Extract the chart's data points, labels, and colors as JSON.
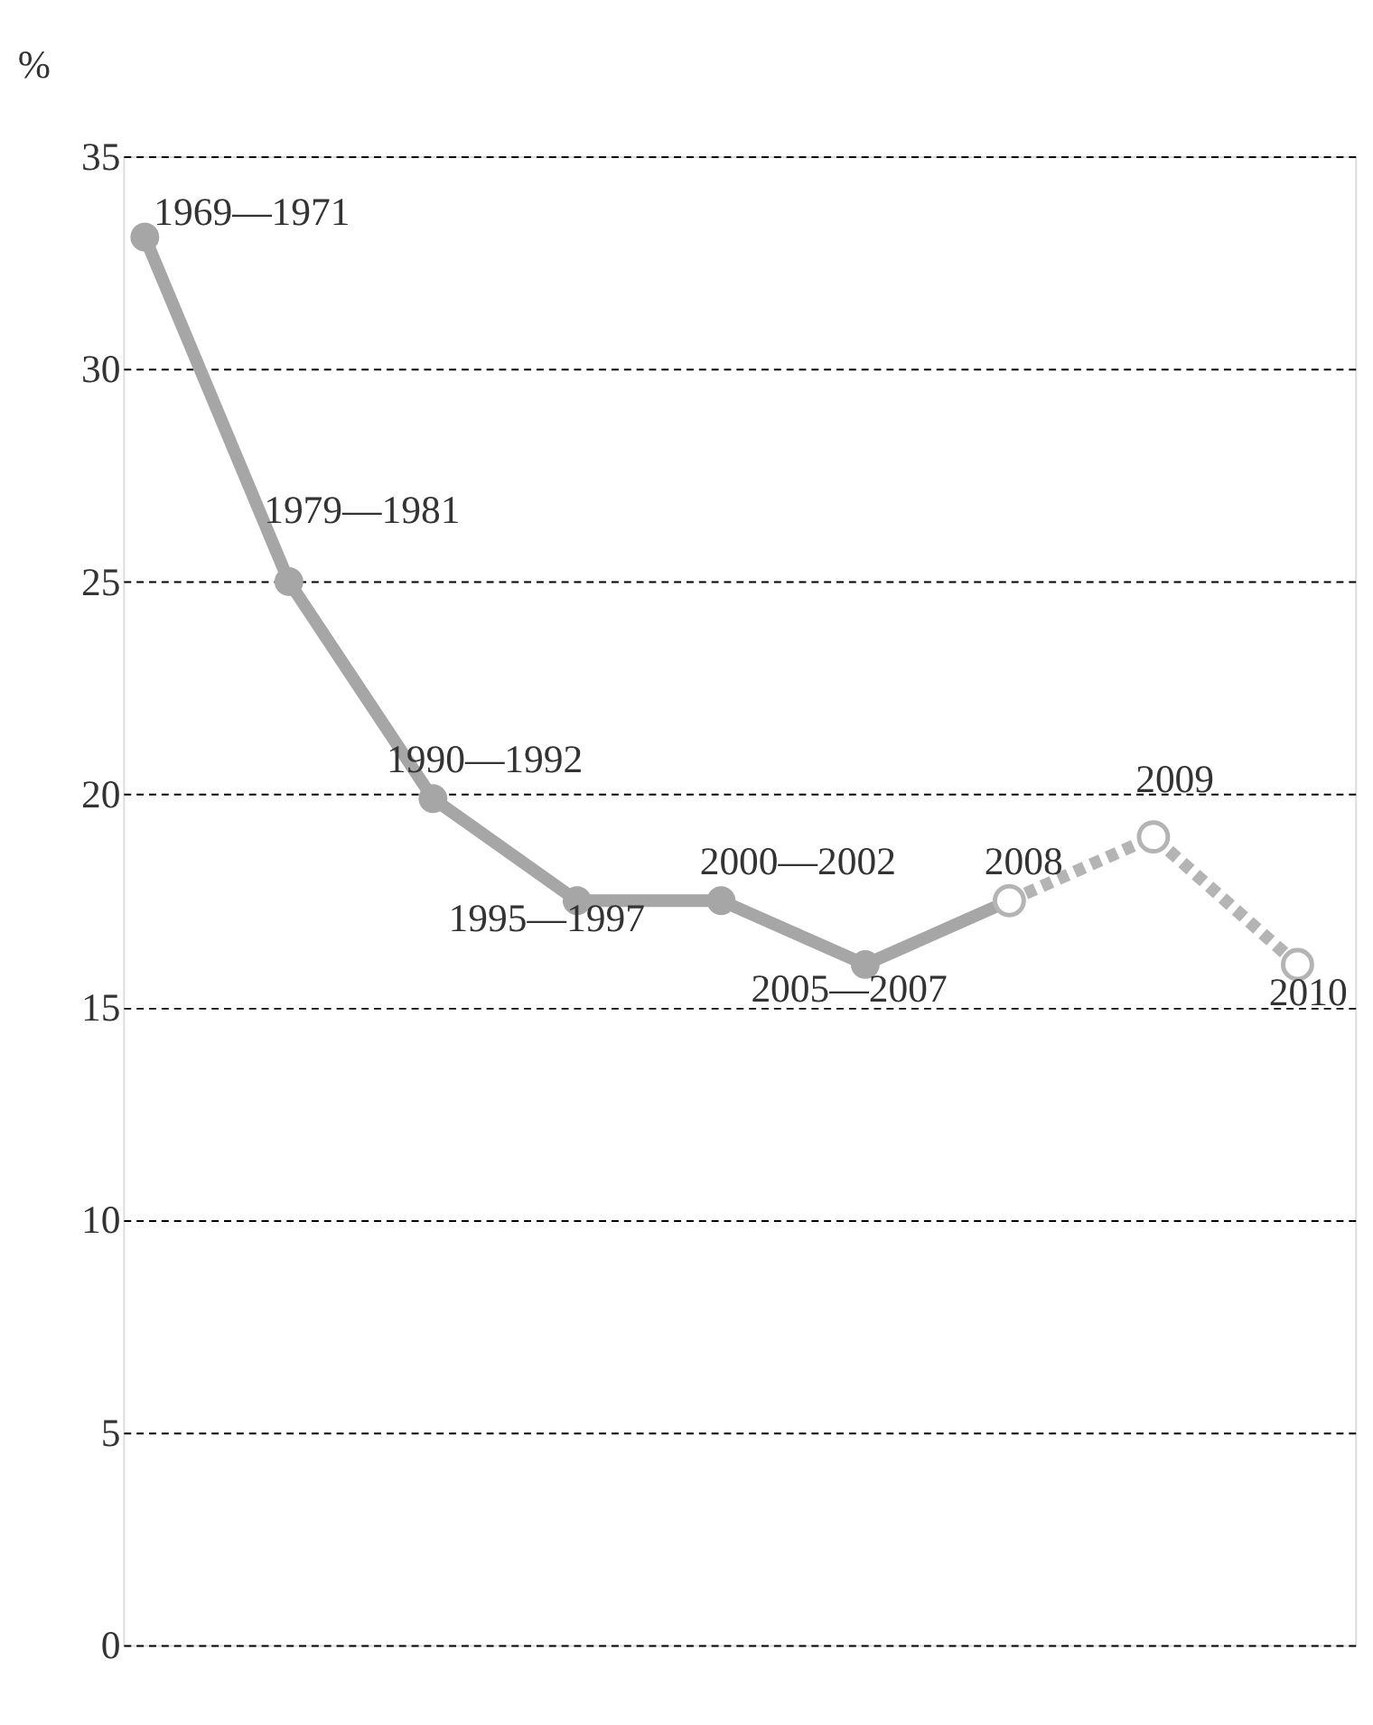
{
  "chart_data": {
    "type": "line",
    "ylabel": "%",
    "categories": [
      null,
      null,
      null,
      null,
      null,
      null,
      null,
      null,
      null
    ],
    "series": [
      {
        "color": "#a6a6a6",
        "marker": "circle",
        "line_style": "solid",
        "values": [
          33.1,
          25,
          19.9,
          17.5,
          17.5,
          16,
          17.5,
          null,
          null
        ]
      },
      {
        "color": "#b4b4b4",
        "marker": "circle",
        "line_style": "dashed",
        "values": [
          null,
          null,
          null,
          null,
          null,
          null,
          17.5,
          19,
          16
        ]
      }
    ],
    "annotations": [
      "1969—1971",
      "1979—1981",
      "1990—1992",
      "1995—1997",
      "2000—2002",
      "2005—2007",
      "2008",
      "2009",
      "2010"
    ],
    "ylim": [
      0,
      35
    ],
    "yticks": [
      0,
      5,
      10,
      15,
      20,
      25,
      30,
      35
    ],
    "grid": "y",
    "tick_labels": "y",
    "legend": false
  }
}
